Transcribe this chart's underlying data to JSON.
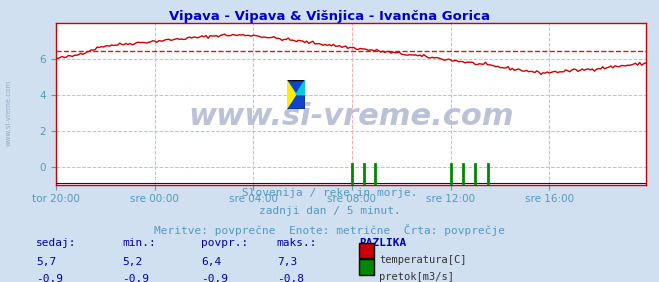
{
  "title": "Vipava - Vipava & Višnjica - Ivančna Gorica",
  "title_color": "#0000cc",
  "bg_color": "#d0e0f0",
  "plot_bg_color": "#ffffff",
  "grid_color": "#ffaaaa",
  "grid_style": "--",
  "xlim": [
    0,
    287
  ],
  "ylim": [
    -1,
    8
  ],
  "yticks": [
    0,
    2,
    4,
    6
  ],
  "xtick_labels": [
    "tor 20:00",
    "sre 00:00",
    "sre 04:00",
    "sre 08:00",
    "sre 12:00",
    "sre 16:00"
  ],
  "xtick_positions": [
    0,
    48,
    96,
    144,
    192,
    240
  ],
  "avg_temp": 6.4,
  "temp_color": "#cc0000",
  "flow_color": "#008800",
  "blue_line_color": "#0000cc",
  "watermark_text": "www.si-vreme.com",
  "watermark_color": "#b0b8d0",
  "subtitle_lines": [
    "Slovenija / reke in morje.",
    "zadnji dan / 5 minut.",
    "Meritve: povprečne  Enote: metrične  Črta: povprečje"
  ],
  "subtitle_color": "#5599bb",
  "subtitle_fontsize": 8,
  "table_headers": [
    "sedaj:",
    "min.:",
    "povpr.:",
    "maks.:",
    "RAZLIKA"
  ],
  "table_row1": [
    "5,7",
    "5,2",
    "6,4",
    "7,3"
  ],
  "table_row2": [
    "-0,9",
    "-0,9",
    "-0,9",
    "-0,8"
  ],
  "table_color": "#0000aa",
  "legend_temp_label": "temperatura[C]",
  "legend_flow_label": "pretok[m3/s]",
  "legend_color": "#333333",
  "tick_color": "#5599bb",
  "border_color": "#cc0000",
  "side_watermark": "www.si-vreme.com"
}
